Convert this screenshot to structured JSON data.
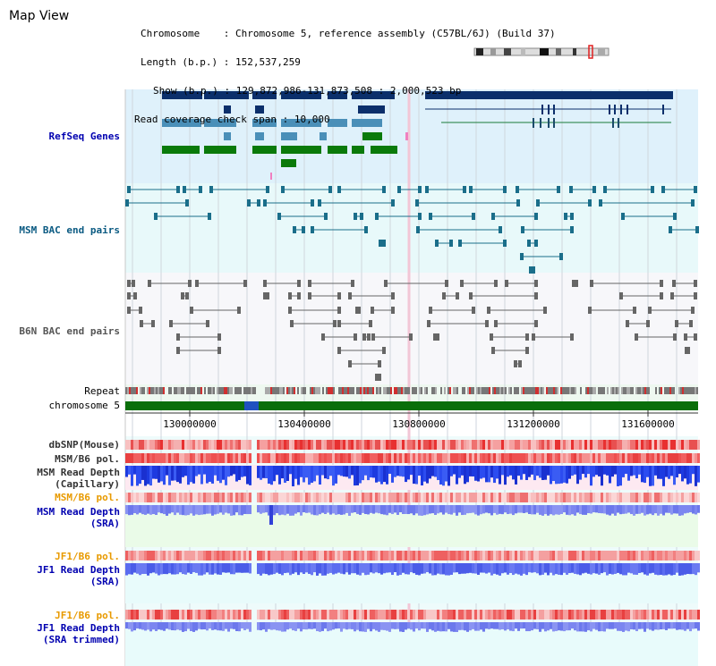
{
  "page_title": "Map View",
  "info": {
    "chromosome_label": "Chromosome",
    "chromosome_value": "Chromosome 5, reference assembly (C57BL/6J) (Build 37)",
    "length_label": "Length (b.p.)",
    "length_value": "152,537,259",
    "show_label": "Show (b.p.)",
    "show_value": "129,872,986-131,873,508 : 2,000,523 bp",
    "span_label": "Read coverage check span",
    "span_value": "10,000"
  },
  "tracks": {
    "refseq": "RefSeq Genes",
    "msm_bac": "MSM BAC end pairs",
    "b6n_bac": "B6N BAC end pairs",
    "repeat": "Repeat",
    "chromosome": "chromosome 5",
    "dbsnp": "dbSNP(Mouse)",
    "msm_b6_pol": "MSM/B6 pol.",
    "msm_depth_cap_1": "MSM Read Depth",
    "msm_depth_cap_2": "(Capillary)",
    "msm_b6_pol2": "MSM/B6 pol.",
    "msm_depth_sra_1": "MSM Read Depth",
    "msm_depth_sra_2": "(SRA)",
    "jf1_b6_pol": "JF1/B6 pol.",
    "jf1_depth_1": "JF1 Read Depth",
    "jf1_depth_2": "(SRA)",
    "jf1_b6_pol2": "JF1/B6 pol.",
    "jf1_trim_1": "JF1 Read Depth",
    "jf1_trim_2": "(SRA trimmed)"
  },
  "axis": {
    "ticks": [
      "130000000",
      "130400000",
      "130800000",
      "131200000",
      "131600000"
    ]
  },
  "colors": {
    "refseq_bg": "#dff1fb",
    "bac_bg": "#e8f9fa",
    "gene_dark": "#0b2f6b",
    "gene_light": "#4a8fb8",
    "gene_green": "#0a7a0a",
    "msm_bac": "#1a6e8a",
    "b6n_bac": "#666666",
    "chromosome": "#0a6e0a",
    "snp_red": "#f06060",
    "depth_blue": "#2040e0",
    "depth_light": "#7c86f0"
  }
}
